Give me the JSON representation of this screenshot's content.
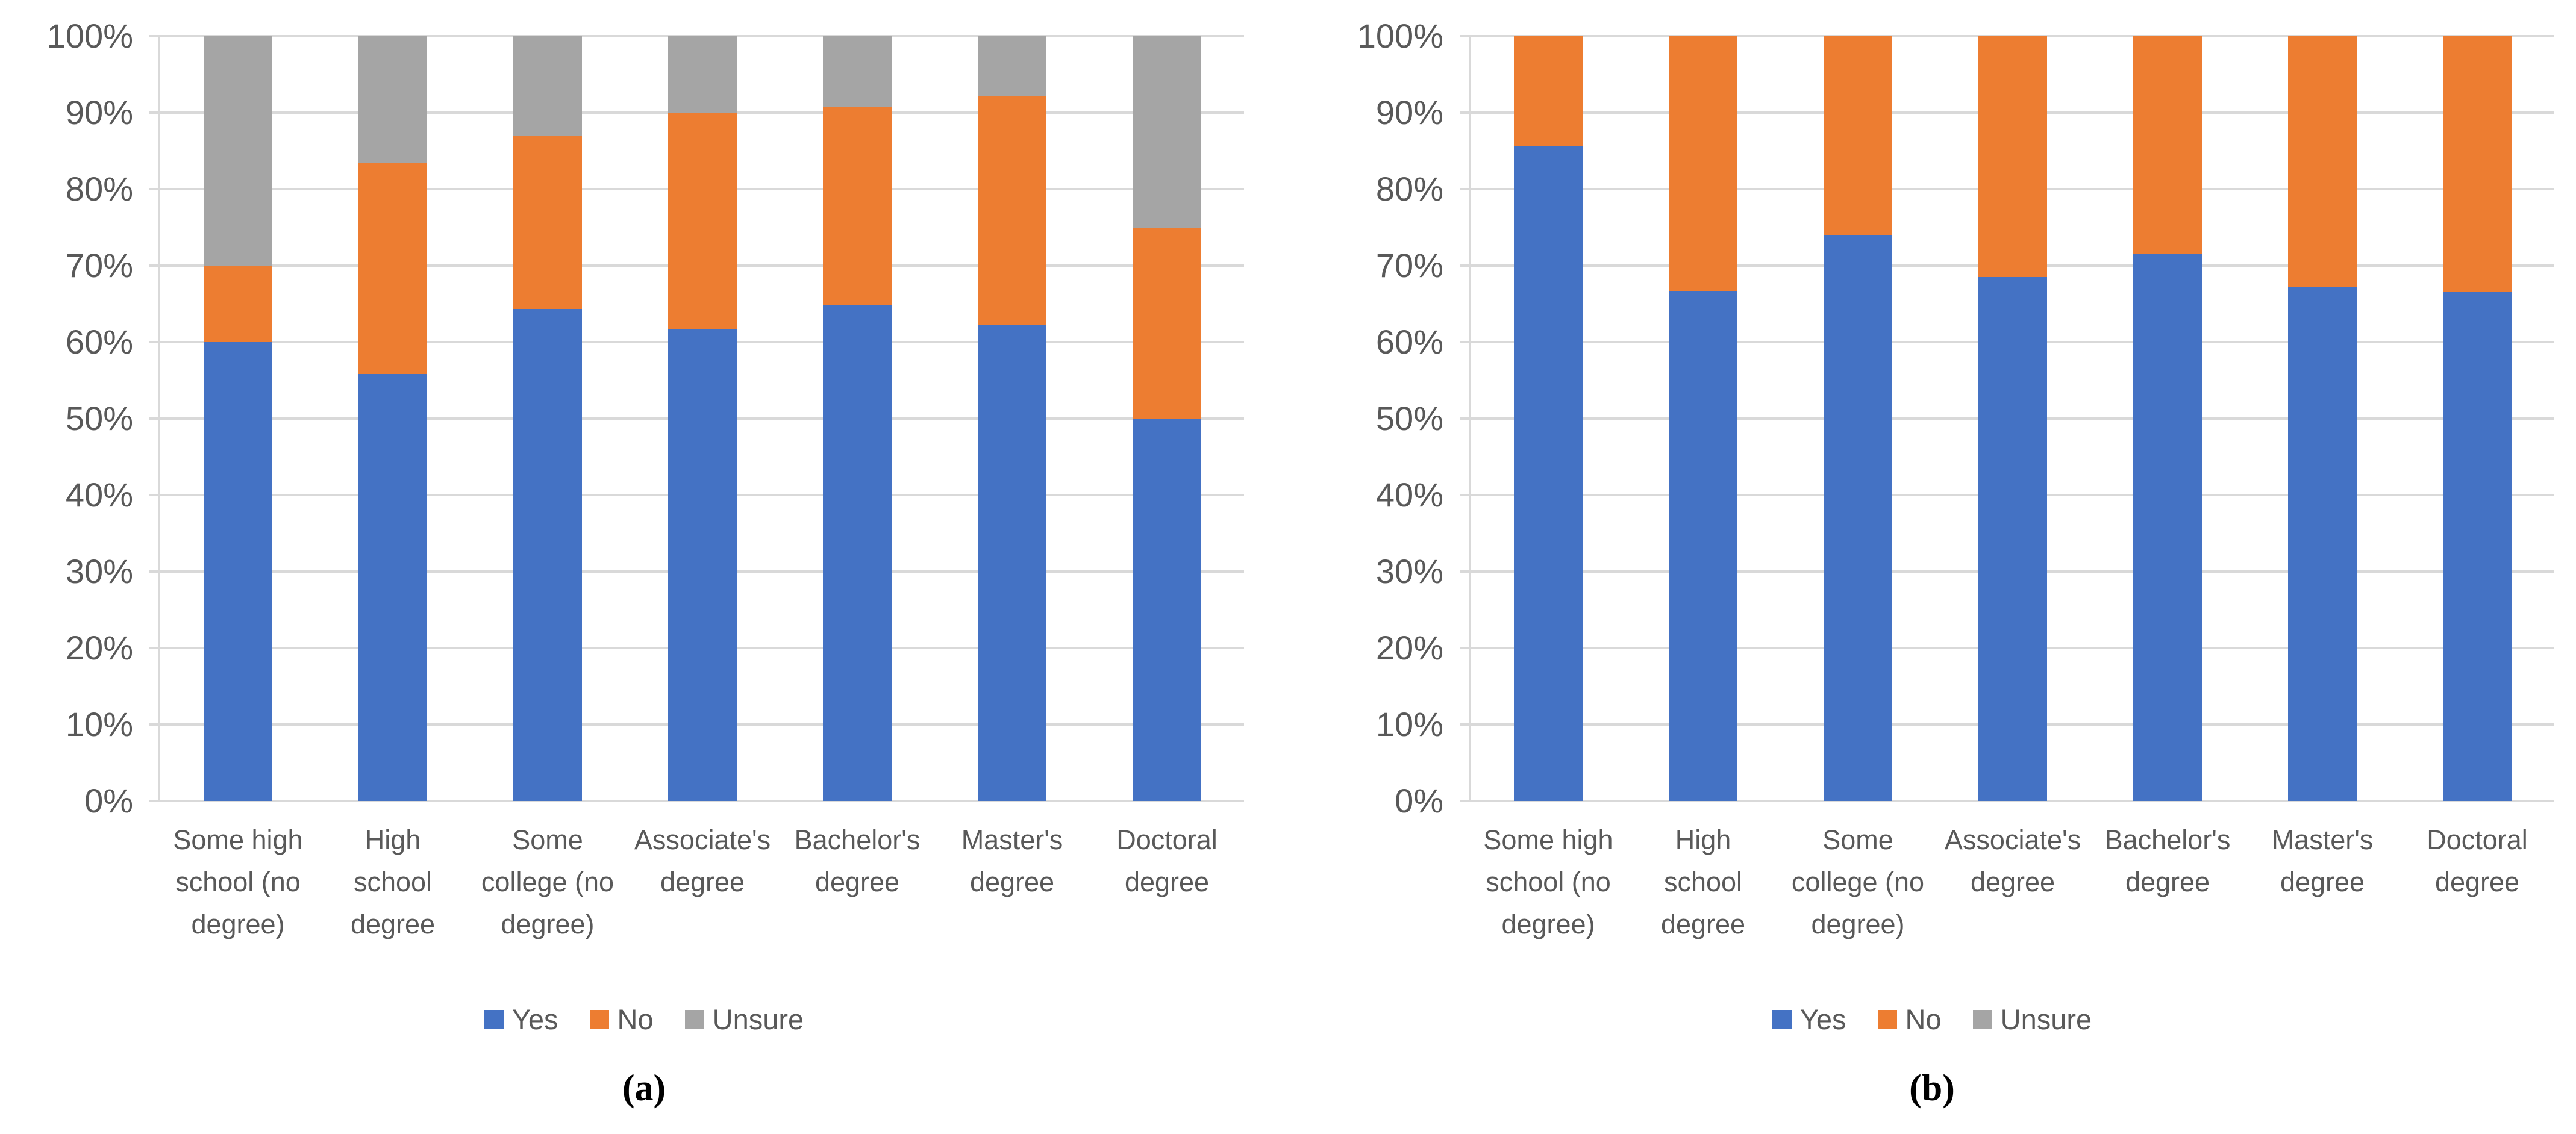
{
  "colors": {
    "yes": "#4472C4",
    "no": "#ED7D31",
    "unsure": "#A5A5A5",
    "gridline": "#D9D9D9",
    "axis_text": "#595959",
    "caption_text": "#000000",
    "background": "#FFFFFF"
  },
  "chart_data": [
    {
      "type": "bar",
      "stacked": true,
      "units": "percent",
      "title": "",
      "caption": "(a)",
      "grid": true,
      "legend_position": "bottom",
      "ylim": [
        0,
        100
      ],
      "yticks": [
        "100%",
        "90%",
        "80%",
        "70%",
        "60%",
        "50%",
        "40%",
        "30%",
        "20%",
        "10%",
        "0%"
      ],
      "categories": [
        "Some high\nschool (no\ndegree)",
        "High\nschool\ndegree",
        "Some\ncollege (no\ndegree)",
        "Associate's\ndegree",
        "Bachelor's\ndegree",
        "Master's\ndegree",
        "Doctoral\ndegree"
      ],
      "series": [
        {
          "name": "Yes",
          "color": "#4472C4",
          "values": [
            60.0,
            55.8,
            64.3,
            61.7,
            64.9,
            62.2,
            50.0
          ]
        },
        {
          "name": "No",
          "color": "#ED7D31",
          "values": [
            10.0,
            27.7,
            22.6,
            28.3,
            25.8,
            30.0,
            25.0
          ]
        },
        {
          "name": "Unsure",
          "color": "#A5A5A5",
          "values": [
            30.0,
            16.5,
            13.1,
            10.0,
            9.3,
            7.8,
            25.0
          ]
        }
      ]
    },
    {
      "type": "bar",
      "stacked": true,
      "units": "percent",
      "title": "",
      "caption": "(b)",
      "grid": true,
      "legend_position": "bottom",
      "ylim": [
        0,
        100
      ],
      "yticks": [
        "100%",
        "90%",
        "80%",
        "70%",
        "60%",
        "50%",
        "40%",
        "30%",
        "20%",
        "10%",
        "0%"
      ],
      "categories": [
        "Some high\nschool (no\ndegree)",
        "High\nschool\ndegree",
        "Some\ncollege (no\ndegree)",
        "Associate's\ndegree",
        "Bachelor's\ndegree",
        "Master's\ndegree",
        "Doctoral\ndegree"
      ],
      "series": [
        {
          "name": "Yes",
          "color": "#4472C4",
          "values": [
            85.7,
            66.7,
            74.0,
            68.5,
            71.6,
            67.2,
            66.5
          ]
        },
        {
          "name": "No",
          "color": "#ED7D31",
          "values": [
            14.3,
            33.3,
            26.0,
            31.5,
            28.4,
            32.8,
            33.5
          ]
        },
        {
          "name": "Unsure",
          "color": "#A5A5A5",
          "values": [
            0,
            0,
            0,
            0,
            0,
            0,
            0
          ]
        }
      ]
    }
  ]
}
